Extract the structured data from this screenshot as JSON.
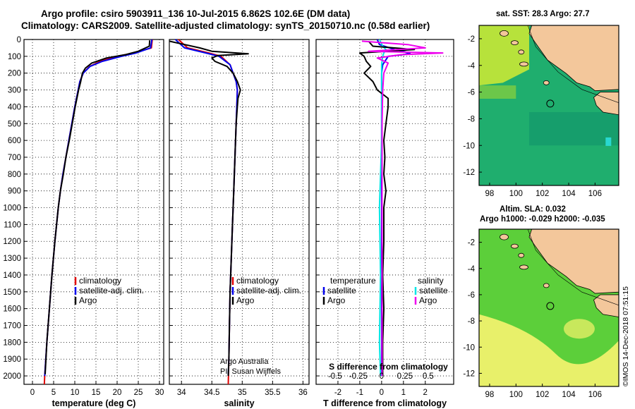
{
  "header": {
    "title_line1": "Argo profile: csiro 5903911_136 10-Jul-2015 6.862S 102.6E (DM data)",
    "title_line2": "Climatology: CARS2009. Satellite-adjusted climatology: synTS_20150710.nc (0.58d earlier)"
  },
  "maps": {
    "sst_header": "sat. SST: 28.3 Argo: 27.7",
    "sla_header1": "Altim. SLA: 0.032",
    "sla_header2": "Argo h1000: -0.029 h2000: -0.035",
    "lon_ticks": [
      "98",
      "100",
      "102",
      "104",
      "106"
    ],
    "lat_ticks": [
      "-2",
      "-4",
      "-6",
      "-8",
      "-10",
      "-12"
    ],
    "profile_lon": 102.6,
    "profile_lat": -6.862,
    "colors": {
      "land": "#f3c79b",
      "sst_sea": "#1fae6e",
      "sst_warm": "#b7e23b",
      "sla_sea": "#5ccf3a",
      "sla_warm": "#e8f06a"
    }
  },
  "stamp": "©IMOS 14-Dec-2018 07:51:15",
  "credit": {
    "line1": "Argo Australia",
    "line2": "PI: Susan Wijffels"
  },
  "chart_data": [
    {
      "type": "line",
      "xlabel": "temperature (deg C)",
      "ylim": [
        2050,
        0
      ],
      "xlim": [
        -2,
        31
      ],
      "xticks": [
        0,
        5,
        10,
        15,
        20,
        25,
        30
      ],
      "yticks": [
        0,
        100,
        200,
        300,
        400,
        500,
        600,
        700,
        800,
        900,
        1000,
        1100,
        1200,
        1300,
        1400,
        1500,
        1600,
        1700,
        1800,
        1900,
        2000
      ],
      "legend": [
        "climatology",
        "satellite-adj. clim.",
        "Argo"
      ],
      "series": [
        {
          "name": "climatology",
          "color": "#e00000",
          "depth": [
            0,
            50,
            80,
            100,
            130,
            160,
            200,
            250,
            300,
            400,
            500,
            600,
            700,
            800,
            900,
            1000,
            1200,
            1400,
            1600,
            1800,
            2000,
            2050
          ],
          "values": [
            28.3,
            28.1,
            24,
            20,
            16,
            13.5,
            12,
            11.2,
            10.8,
            10.0,
            9.3,
            8.6,
            7.9,
            7.2,
            6.6,
            6.1,
            5.3,
            4.6,
            4.0,
            3.4,
            2.9,
            2.8
          ]
        },
        {
          "name": "satellite-adj. clim.",
          "color": "#0000ee",
          "depth": [
            0,
            50,
            80,
            100,
            130,
            160,
            200,
            250,
            300,
            400,
            500,
            600,
            700,
            800,
            900,
            1000,
            1200,
            1400,
            1600,
            1800,
            2000
          ],
          "values": [
            28.2,
            27.9,
            24.5,
            21,
            16.5,
            13.6,
            12,
            11.2,
            10.8,
            10.0,
            9.3,
            8.6,
            7.9,
            7.2,
            6.6,
            6.1,
            5.3,
            4.6,
            4.0,
            3.4,
            2.9
          ]
        },
        {
          "name": "Argo",
          "color": "#000000",
          "depth": [
            5,
            40,
            70,
            90,
            110,
            140,
            170,
            200,
            250,
            300,
            400,
            500,
            600,
            700,
            800,
            900,
            1000,
            1200,
            1400,
            1600,
            1800,
            1990
          ],
          "values": [
            27.7,
            27.6,
            25,
            22,
            17.5,
            14,
            12.5,
            11.8,
            11.4,
            10.9,
            10.1,
            9.4,
            8.7,
            7.9,
            7.3,
            6.6,
            6.1,
            5.3,
            4.6,
            4.0,
            3.4,
            3.0
          ]
        }
      ]
    },
    {
      "type": "line",
      "xlabel": "salinity",
      "ylim": [
        2050,
        0
      ],
      "xlim": [
        33.8,
        36.1
      ],
      "xticks": [
        34,
        34.5,
        35,
        35.5,
        36
      ],
      "xtick_labels": [
        "34",
        "34.5",
        "35",
        "35.5",
        "36"
      ],
      "legend": [
        "climatology",
        "satellite-adj. clim.",
        "Argo"
      ],
      "series": [
        {
          "name": "climatology",
          "color": "#e00000",
          "depth": [
            0,
            50,
            80,
            100,
            150,
            200,
            250,
            300,
            400,
            500,
            700,
            900,
            1100,
            1300,
            1500,
            1700,
            1900,
            2050
          ],
          "values": [
            33.95,
            34.1,
            34.45,
            34.65,
            34.8,
            34.85,
            34.9,
            34.92,
            34.91,
            34.9,
            34.88,
            34.86,
            34.84,
            34.82,
            34.8,
            34.79,
            34.78,
            34.77
          ]
        },
        {
          "name": "satellite-adj. clim.",
          "color": "#0000ee",
          "depth": [
            0,
            50,
            80,
            100,
            150,
            200,
            250,
            300,
            400,
            500,
            700,
            900,
            1100,
            1300,
            1500,
            1700,
            1900,
            2000
          ],
          "values": [
            33.9,
            34.05,
            34.4,
            34.62,
            34.8,
            34.85,
            34.9,
            34.92,
            34.91,
            34.9,
            34.88,
            34.86,
            34.84,
            34.82,
            34.8,
            34.79,
            34.78,
            34.77
          ]
        },
        {
          "name": "Argo",
          "color": "#000000",
          "depth": [
            10,
            50,
            70,
            85,
            95,
            110,
            130,
            160,
            200,
            250,
            300,
            350,
            400,
            500,
            700,
            900,
            1100,
            1300,
            1500,
            1700,
            1900,
            2000
          ],
          "values": [
            33.8,
            34.3,
            34.5,
            35.1,
            34.6,
            34.5,
            34.55,
            34.75,
            34.85,
            34.92,
            34.97,
            34.93,
            34.92,
            34.9,
            34.88,
            34.86,
            34.84,
            34.82,
            34.8,
            34.79,
            34.78,
            34.77
          ]
        }
      ]
    },
    {
      "type": "line",
      "xlabel": "T difference from climatology",
      "top_axis_label": "S difference from climatology",
      "ylim": [
        2050,
        0
      ],
      "xlim": [
        -3,
        3.3
      ],
      "xticks": [
        -2,
        -1,
        0,
        1,
        2
      ],
      "top_xticks": [
        -0.5,
        -0.25,
        0,
        0.25,
        0.5
      ],
      "top_xtick_labels": [
        "-0.5",
        "-0.25",
        "0",
        "0.25",
        "0.5"
      ],
      "legend_left_title": "temperature",
      "legend_right_title": "salinity",
      "legend_left": [
        "satellite",
        "Argo"
      ],
      "legend_right": [
        "satellite",
        "Argo"
      ],
      "series": [
        {
          "name": "temperature satellite",
          "color": "#0000ee",
          "depth": [
            0,
            30,
            60,
            80,
            90,
            100,
            150,
            200,
            300,
            500,
            1000,
            1500,
            2000
          ],
          "values": [
            -0.2,
            -0.1,
            0.6,
            1.3,
            1.0,
            0.3,
            0.05,
            0,
            0,
            0,
            0,
            0,
            0
          ]
        },
        {
          "name": "salinity satellite",
          "color": "#00e5e5",
          "depth": [
            0,
            40,
            60,
            80,
            100,
            150,
            300,
            600,
            1000,
            1400,
            1800,
            2000
          ],
          "values": [
            -0.1,
            0.05,
            0.2,
            0.1,
            0.05,
            0,
            0,
            0,
            -0.1,
            -0.05,
            -0.1,
            -0.05
          ]
        },
        {
          "name": "temperature Argo",
          "color": "#000000",
          "depth": [
            10,
            40,
            60,
            80,
            100,
            130,
            160,
            200,
            250,
            300,
            350,
            400,
            500,
            600,
            700,
            800,
            900,
            1000,
            1200,
            1400,
            1600,
            1800,
            1990
          ],
          "values": [
            -0.6,
            -0.4,
            1.5,
            -1.0,
            -0.8,
            -0.7,
            -0.5,
            -0.8,
            -0.4,
            -0.2,
            0.3,
            0.3,
            0.2,
            0.1,
            0.15,
            0.1,
            0.2,
            0.1,
            0.1,
            0.05,
            0.1,
            0.05,
            0.05
          ]
        },
        {
          "name": "salinity Argo",
          "color": "#ee00ee",
          "depth": [
            10,
            30,
            50,
            70,
            80,
            90,
            110,
            140,
            200,
            300,
            500,
            800,
            1000,
            1500,
            2000
          ],
          "values": [
            -0.9,
            1.2,
            2.0,
            -0.6,
            2.8,
            0.9,
            -0.2,
            0.3,
            0.1,
            0.05,
            0.02,
            0.02,
            0.02,
            0.02,
            0.02
          ]
        }
      ]
    }
  ]
}
